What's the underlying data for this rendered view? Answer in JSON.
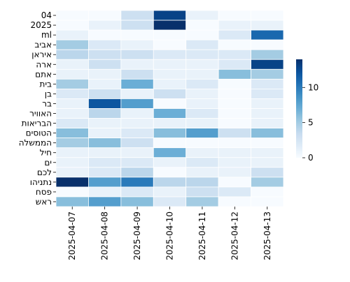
{
  "chart_data": {
    "type": "heatmap",
    "x": [
      "2025-04-07",
      "2025-04-08",
      "2025-04-09",
      "2025-04-10",
      "2025-04-11",
      "2025-04-12",
      "2025-04-13"
    ],
    "y": [
      "04",
      "2025",
      "ml",
      "אביב",
      "איראן",
      "ארה",
      "אתם",
      "בית",
      "בן",
      "בר",
      "האוויר",
      "הבריאות",
      "הטוסים",
      "הממשלה",
      "חיל",
      "ים",
      "לכם",
      "נתניהו",
      "פסח",
      "ראש"
    ],
    "values": [
      [
        0,
        0,
        3,
        13,
        1,
        0,
        0
      ],
      [
        0,
        1,
        3,
        14,
        0,
        1,
        1
      ],
      [
        1,
        0,
        0,
        0,
        0,
        2,
        11
      ],
      [
        5,
        2,
        1,
        0,
        2,
        0,
        0
      ],
      [
        4,
        3,
        3,
        2,
        2,
        2,
        5
      ],
      [
        1,
        3,
        1,
        1,
        1,
        2,
        13
      ],
      [
        1,
        1,
        3,
        1,
        1,
        6,
        5
      ],
      [
        5,
        1,
        7,
        1,
        2,
        0,
        2
      ],
      [
        2,
        3,
        1,
        3,
        1,
        0,
        2
      ],
      [
        1,
        12,
        8,
        0,
        1,
        0,
        1
      ],
      [
        1,
        4,
        1,
        7,
        2,
        0,
        1
      ],
      [
        2,
        1,
        1,
        1,
        1,
        0,
        1
      ],
      [
        6,
        1,
        2,
        6,
        8,
        3,
        6
      ],
      [
        5,
        6,
        3,
        0,
        0,
        0,
        0
      ],
      [
        1,
        1,
        1,
        7,
        1,
        1,
        1
      ],
      [
        1,
        2,
        2,
        1,
        2,
        1,
        1
      ],
      [
        1,
        2,
        4,
        0,
        1,
        1,
        3
      ],
      [
        14,
        8,
        10,
        4,
        4,
        0,
        5
      ],
      [
        0,
        1,
        2,
        1,
        3,
        2,
        0
      ],
      [
        6,
        8,
        6,
        2,
        5,
        0,
        0
      ]
    ],
    "colormap": "Blues",
    "vmin": 0,
    "vmax": 14,
    "colorbar_ticks": [
      0,
      5,
      10
    ],
    "grid_color": "#ffffff",
    "legend": "colorbar-right"
  }
}
